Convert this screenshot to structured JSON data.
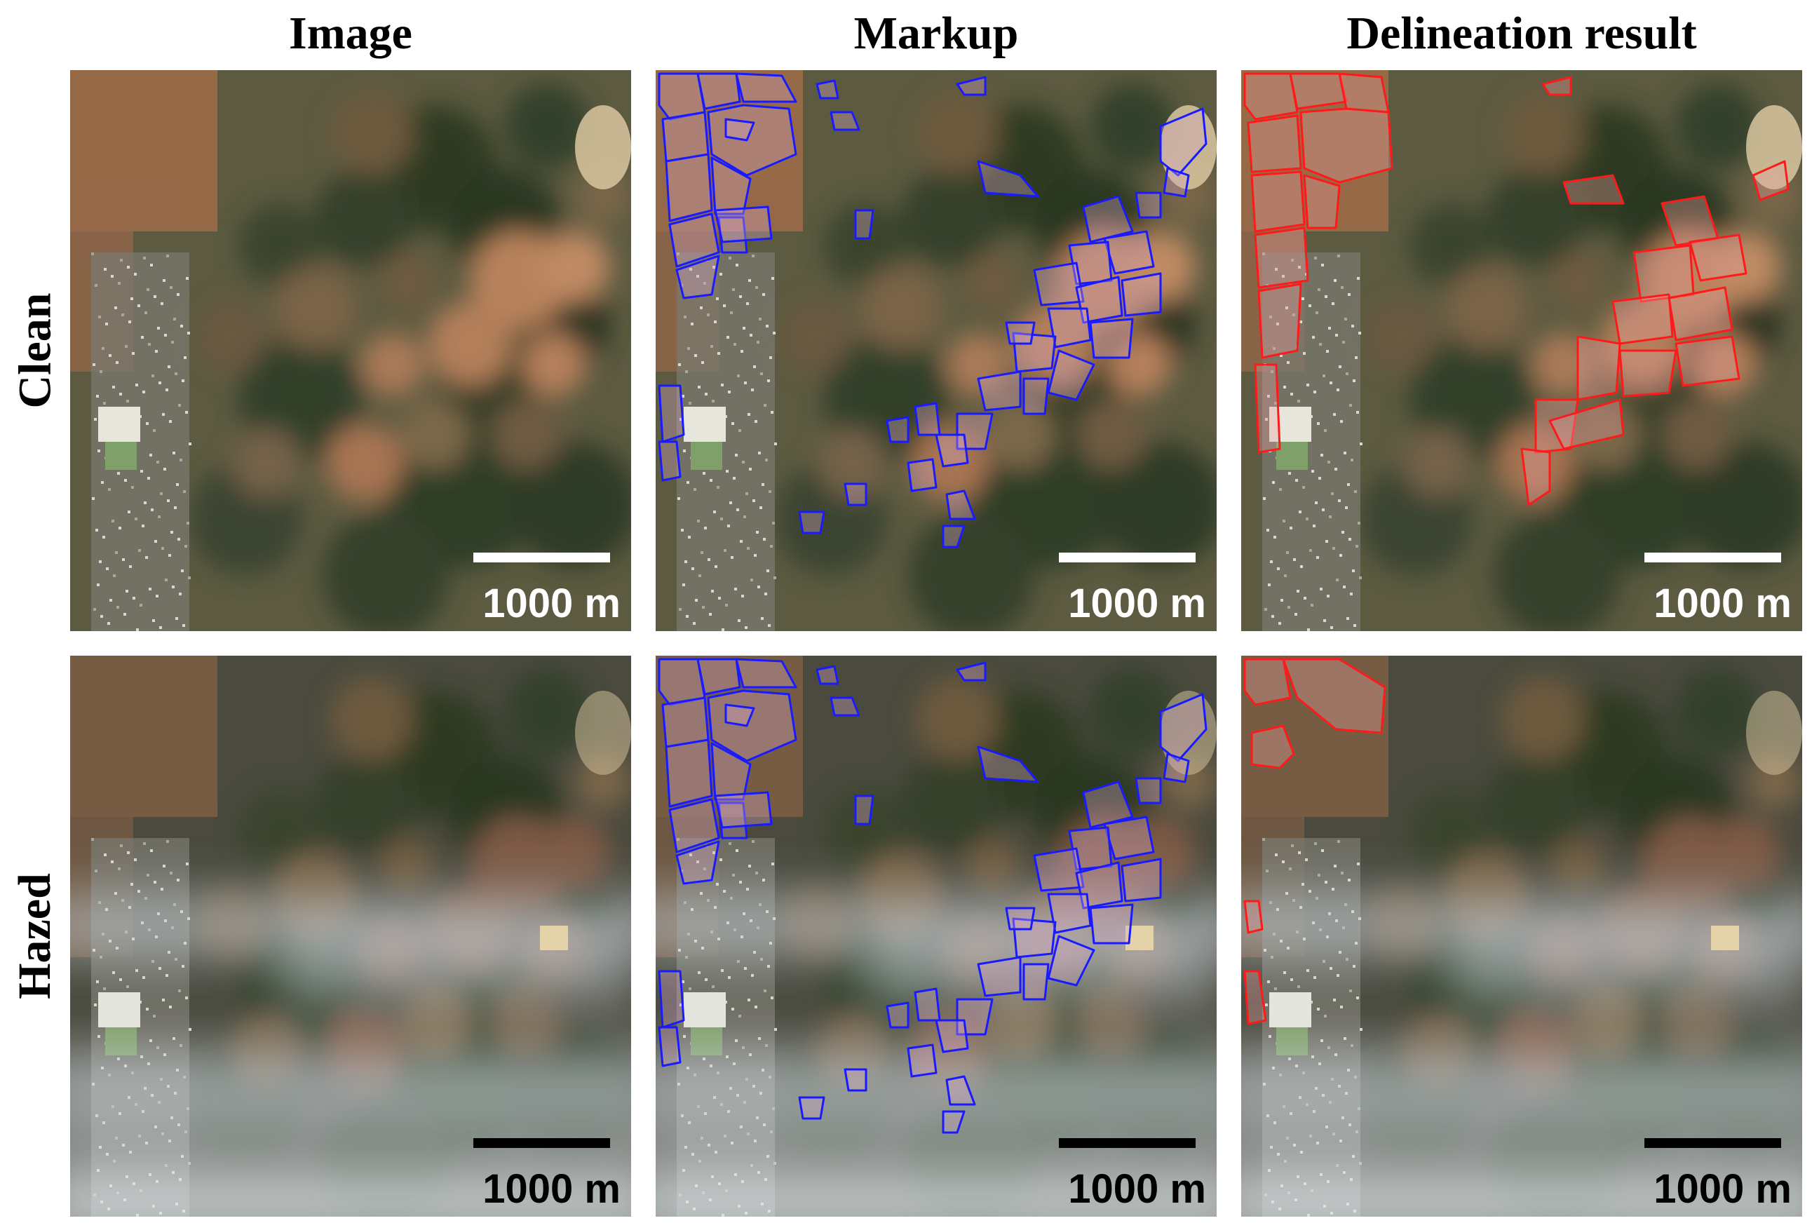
{
  "column_titles": [
    "Image",
    "Markup",
    "Delineation result"
  ],
  "row_titles": [
    "Clean",
    "Hazed"
  ],
  "scale_bar": {
    "label": "1000 m"
  },
  "colors": {
    "markup_outline": "#1a1aff",
    "delineation_outline": "#ff1a1a",
    "scale_bar_clean": "#ffffff",
    "scale_bar_hazed": "#000000"
  },
  "panels": [
    {
      "row": "Clean",
      "column": "Image"
    },
    {
      "row": "Clean",
      "column": "Markup"
    },
    {
      "row": "Clean",
      "column": "Delineation result"
    },
    {
      "row": "Hazed",
      "column": "Image"
    },
    {
      "row": "Hazed",
      "column": "Markup"
    },
    {
      "row": "Hazed",
      "column": "Delineation result"
    }
  ]
}
